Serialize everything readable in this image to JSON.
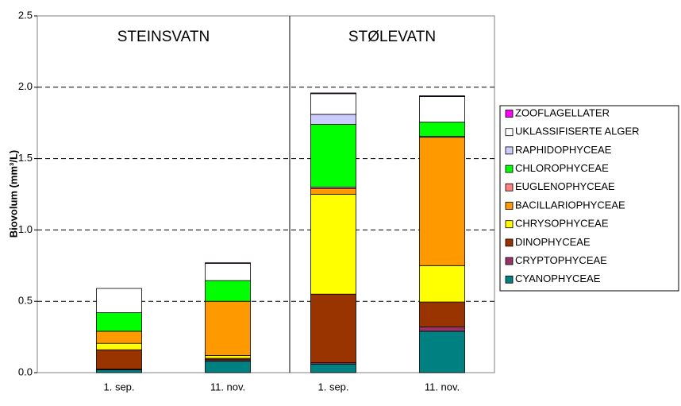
{
  "chart_data": {
    "type": "stacked_bar",
    "y_label": "Biovolum (mm³/L)",
    "groups": [
      "STEINSVATN",
      "STØLEVATN"
    ],
    "categories": [
      "1. sep.",
      "11. nov.",
      "1. sep.",
      "11. nov."
    ],
    "ylim": [
      0,
      2.5
    ],
    "yticks": [
      {
        "value": 0,
        "label": "0.0"
      },
      {
        "value": 0.5,
        "label": "0.5"
      },
      {
        "value": 1,
        "label": "1.0"
      },
      {
        "value": 1.5,
        "label": "1.5"
      },
      {
        "value": 2,
        "label": "2.0"
      },
      {
        "value": 2.5,
        "label": "2.5"
      }
    ],
    "grid": true,
    "legend": "right",
    "series": [
      {
        "name": "CYANOPHYCEAE",
        "color": "#008080",
        "values": [
          0.02,
          0.08,
          0.06,
          0.29
        ]
      },
      {
        "name": "CRYPTOPHYCEAE",
        "color": "#993366",
        "values": [
          0.005,
          0.01,
          0.01,
          0.03
        ]
      },
      {
        "name": "DINOPHYCEAE",
        "color": "#993300",
        "values": [
          0.135,
          0.01,
          0.48,
          0.175
        ]
      },
      {
        "name": "CHRYSOPHYCEAE",
        "color": "#ffff00",
        "values": [
          0.045,
          0.02,
          0.7,
          0.255
        ]
      },
      {
        "name": "BACILLARIOPHYCEAE",
        "color": "#ff9900",
        "values": [
          0.085,
          0.38,
          0.04,
          0.9
        ]
      },
      {
        "name": "EUGLENOPHYCEAE",
        "color": "#ff8080",
        "values": [
          0,
          0,
          0.01,
          0.005
        ]
      },
      {
        "name": "CHLOROPHYCEAE",
        "color": "#00ff00",
        "values": [
          0.13,
          0.145,
          0.44,
          0.1
        ]
      },
      {
        "name": "RAPHIDOPHYCEAE",
        "color": "#ccccff",
        "values": [
          0,
          0,
          0.07,
          0
        ]
      },
      {
        "name": "UKLASSIFISERTE ALGER",
        "color": "#ffffff",
        "values": [
          0.17,
          0.12,
          0.145,
          0.18
        ]
      },
      {
        "name": "ZOOFLAGELLATER",
        "color": "#ff00ff",
        "values": [
          0,
          0.005,
          0.005,
          0.005
        ]
      }
    ]
  }
}
